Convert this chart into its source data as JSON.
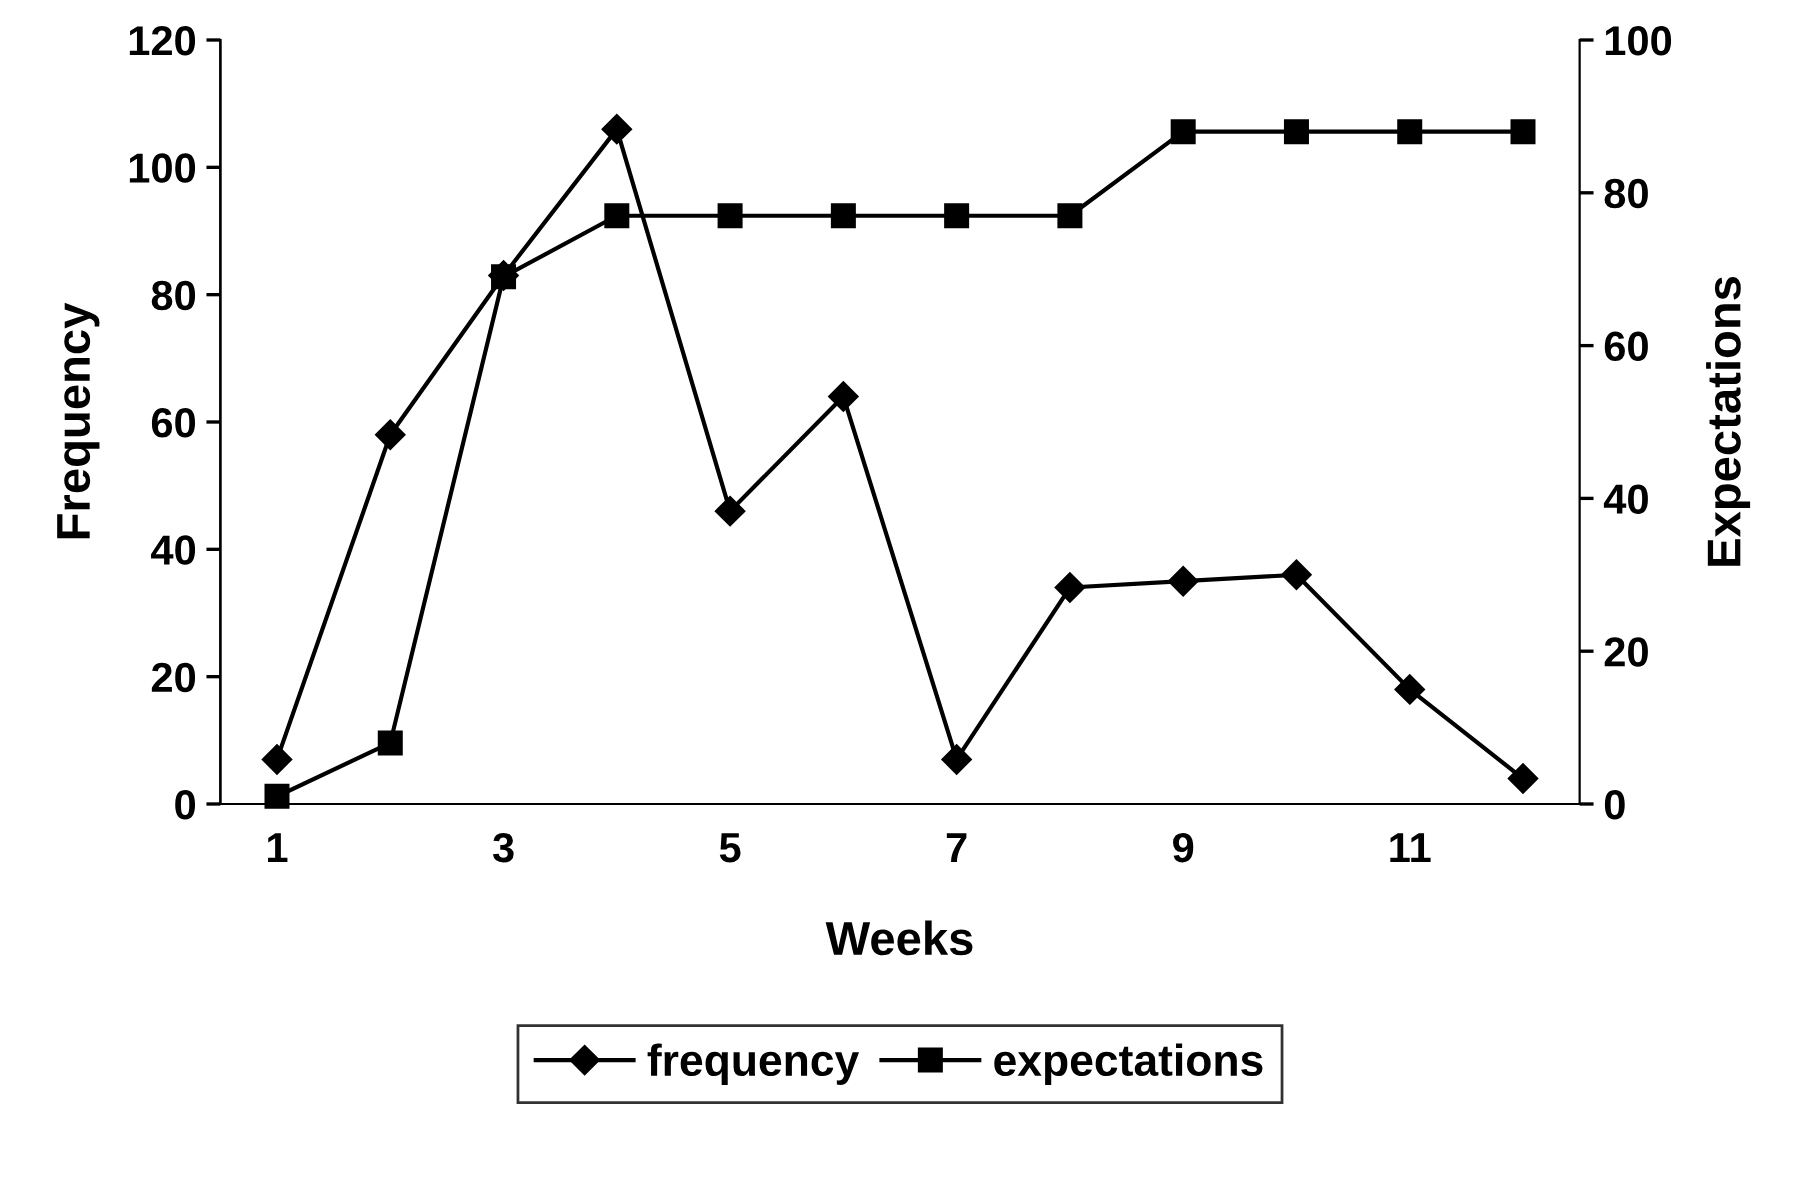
{
  "chart_data": {
    "type": "line",
    "xlabel": "Weeks",
    "ylabel": "Frequency",
    "y2label": "Expectations",
    "categories": [
      "1",
      null,
      "3",
      null,
      "5",
      null,
      "7",
      null,
      "9",
      null,
      "11",
      null
    ],
    "series": [
      {
        "name": "frequency",
        "color": "#000000",
        "marker": "diamond",
        "values": [
          7,
          58,
          83,
          106,
          46,
          64,
          7,
          34,
          35,
          36,
          18,
          4
        ]
      },
      {
        "name": "expectations",
        "color": "#000000",
        "marker": "square",
        "axis": "y2",
        "values": [
          1,
          8,
          69,
          77,
          77,
          77,
          77,
          77,
          88,
          88,
          88,
          88
        ]
      }
    ],
    "ylim": [
      0,
      120
    ],
    "yticks": [
      0,
      20,
      40,
      60,
      80,
      100,
      120
    ],
    "y2lim": [
      0,
      100
    ],
    "y2ticks": [
      0,
      20,
      40,
      60,
      80,
      100
    ],
    "grid": false,
    "legend": "bottom",
    "line_style": "solid"
  }
}
